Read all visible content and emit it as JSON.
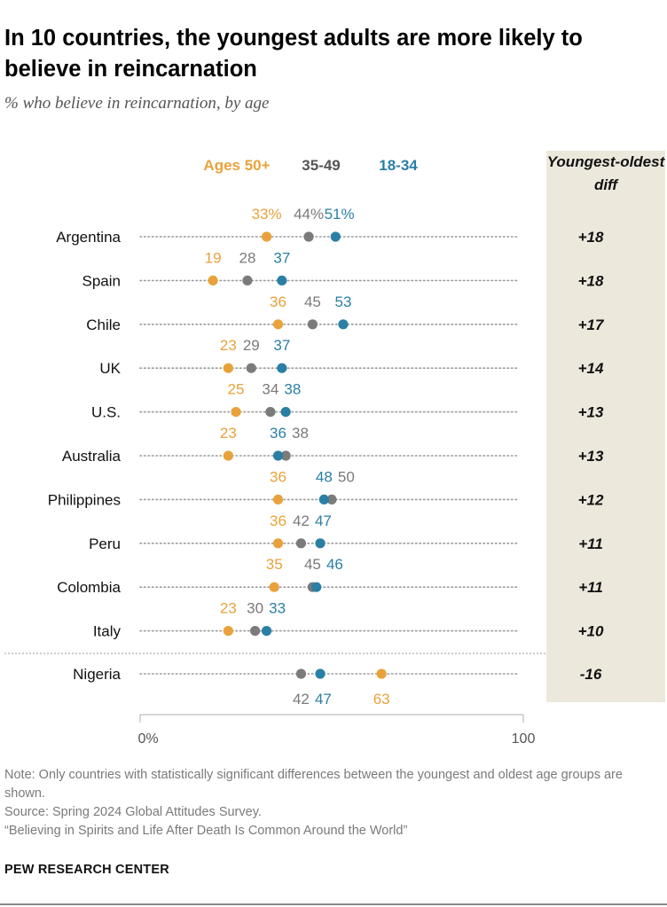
{
  "title": "In 10 countries, the youngest adults are more likely to believe in reincarnation",
  "subtitle": "% who believe in reincarnation, by age",
  "colors": {
    "age50": "#e9a23b",
    "age35": "#7b7b7b",
    "age18": "#2a7fa5",
    "diffBg": "#ece8dc",
    "dotted": "#9a9a9a"
  },
  "chart_data": {
    "type": "scatter",
    "title": "In 10 countries, the youngest adults are more likely to believe in reincarnation",
    "subtitle": "% who believe in reincarnation, by age",
    "xlim": [
      0,
      100
    ],
    "x_ticks": [
      "0%",
      "100"
    ],
    "legend": [
      "Ages 50+",
      "35-49",
      "18-34"
    ],
    "diff_header": "Youngest-oldest diff",
    "categories": [
      "Argentina",
      "Spain",
      "Chile",
      "UK",
      "U.S.",
      "Australia",
      "Philippines",
      "Peru",
      "Colombia",
      "Italy",
      "Nigeria"
    ],
    "series": [
      {
        "name": "Ages 50+",
        "values": [
          33,
          19,
          36,
          23,
          25,
          23,
          36,
          36,
          35,
          23,
          63
        ],
        "labels": [
          "33%",
          "19",
          "36",
          "23",
          "25",
          "23",
          "36",
          "36",
          "35",
          "23",
          "63"
        ]
      },
      {
        "name": "35-49",
        "values": [
          44,
          28,
          45,
          29,
          34,
          38,
          50,
          42,
          45,
          30,
          42
        ],
        "labels": [
          "44%",
          "28",
          "45",
          "29",
          "34",
          "38",
          "50",
          "42",
          "45",
          "30",
          "42"
        ]
      },
      {
        "name": "18-34",
        "values": [
          51,
          37,
          53,
          37,
          38,
          36,
          48,
          47,
          46,
          33,
          47
        ],
        "labels": [
          "51%",
          "37",
          "53",
          "37",
          "38",
          "36",
          "48",
          "47",
          "46",
          "33",
          "47"
        ]
      }
    ],
    "diffs": [
      "+18",
      "+18",
      "+17",
      "+14",
      "+13",
      "+13",
      "+12",
      "+11",
      "+11",
      "+10",
      "-16"
    ]
  },
  "notes": {
    "note": "Note: Only countries with statistically significant differences between the youngest and oldest age groups are shown.",
    "source": "Source: Spring 2024 Global Attitudes Survey.",
    "report": "“Believing in Spirits and Life After Death Is Common Around the World”"
  },
  "footer": "PEW RESEARCH CENTER"
}
